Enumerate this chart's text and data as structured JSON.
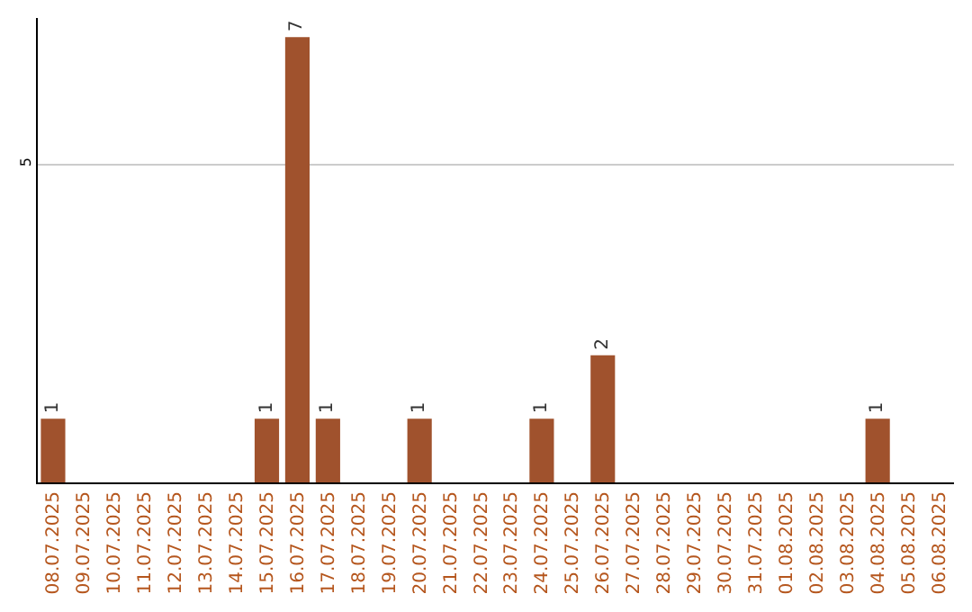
{
  "chart_data": {
    "type": "bar",
    "categories": [
      "08.07.2025",
      "09.07.2025",
      "10.07.2025",
      "11.07.2025",
      "12.07.2025",
      "13.07.2025",
      "14.07.2025",
      "15.07.2025",
      "16.07.2025",
      "17.07.2025",
      "18.07.2025",
      "19.07.2025",
      "20.07.2025",
      "21.07.2025",
      "22.07.2025",
      "23.07.2025",
      "24.07.2025",
      "25.07.2025",
      "26.07.2025",
      "27.07.2025",
      "28.07.2025",
      "29.07.2025",
      "30.07.2025",
      "31.07.2025",
      "01.08.2025",
      "02.08.2025",
      "03.08.2025",
      "04.08.2025",
      "05.08.2025",
      "06.08.2025"
    ],
    "values": [
      1,
      0,
      0,
      0,
      0,
      0,
      0,
      1,
      7,
      1,
      0,
      0,
      1,
      0,
      0,
      0,
      1,
      0,
      2,
      0,
      0,
      0,
      0,
      0,
      0,
      0,
      0,
      1,
      0,
      0
    ],
    "value_labels": [
      "1",
      null,
      null,
      null,
      null,
      null,
      null,
      "1",
      "7",
      "1",
      null,
      null,
      "1",
      null,
      null,
      null,
      "1",
      null,
      "2",
      null,
      null,
      null,
      null,
      null,
      null,
      null,
      null,
      "1",
      null,
      null
    ],
    "color": "#a0522d",
    "ylim": [
      0,
      7.3
    ],
    "yticks": [
      5
    ],
    "grid": "y",
    "legend": false
  }
}
